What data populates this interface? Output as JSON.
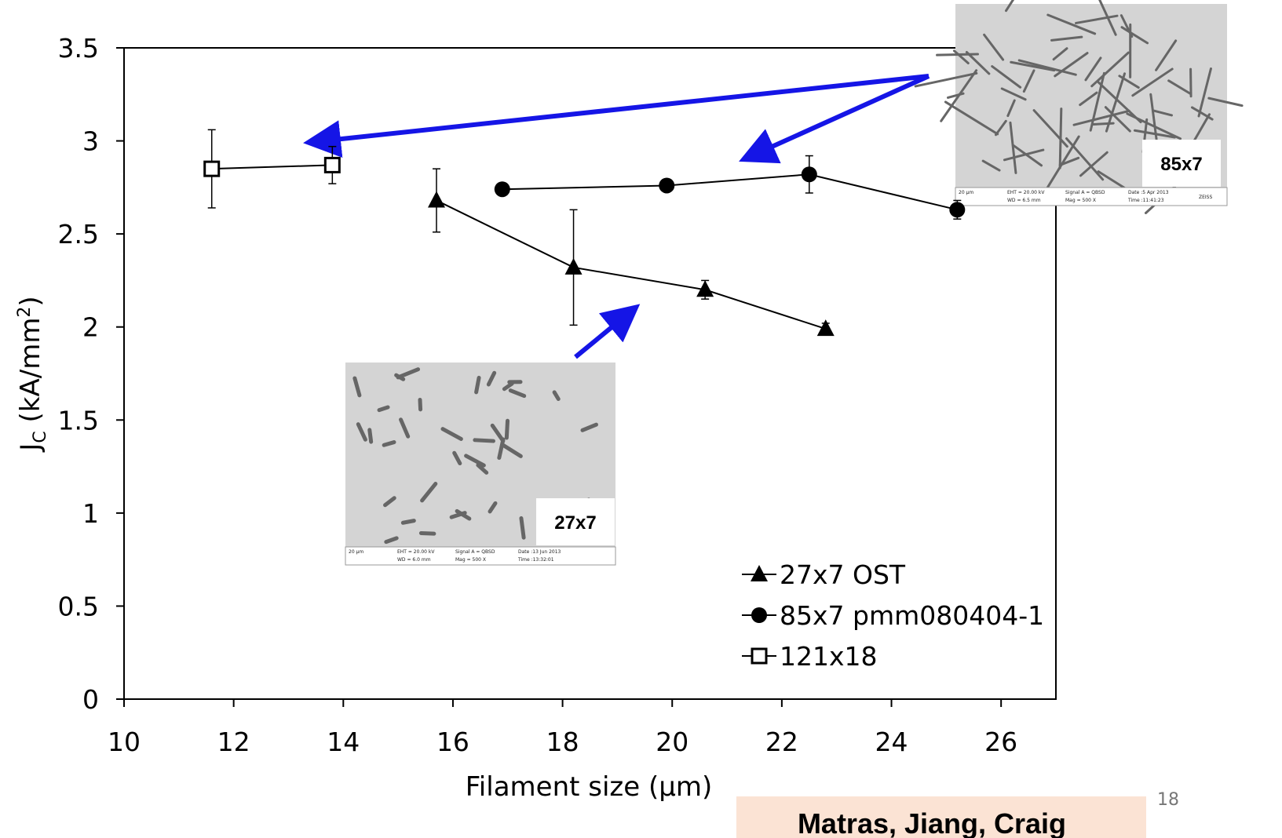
{
  "chart_data": {
    "type": "line",
    "x_label": "Filament size (µm)",
    "y_label": [
      "J",
      "C",
      " (kA/mm",
      "2",
      ")"
    ],
    "xlim": [
      10,
      27
    ],
    "xticks": [
      10,
      12,
      14,
      16,
      18,
      20,
      22,
      24,
      26
    ],
    "ylim": [
      0,
      3.5
    ],
    "yticks": [
      0,
      0.5,
      1,
      1.5,
      2,
      2.5,
      3,
      3.5
    ],
    "legend": "lower right",
    "series": [
      {
        "name": "27x7 OST",
        "marker": "triangle",
        "color": "#000000",
        "x": [
          15.7,
          18.2,
          20.6,
          22.8
        ],
        "values": [
          2.68,
          2.32,
          2.2,
          1.99
        ],
        "errors": [
          0.17,
          0.31,
          0.05,
          0.03
        ]
      },
      {
        "name": "85x7 pmm080404-1",
        "marker": "circle",
        "color": "#000000",
        "x": [
          16.9,
          19.9,
          22.5,
          25.2
        ],
        "values": [
          2.74,
          2.76,
          2.82,
          2.63
        ],
        "errors": [
          0,
          0,
          0.1,
          0.05
        ]
      },
      {
        "name": "121x18",
        "marker": "open-square",
        "color": "#000000",
        "x": [
          11.6,
          13.8
        ],
        "values": [
          2.85,
          2.87
        ],
        "errors": [
          0.21,
          0.1
        ]
      }
    ]
  },
  "insets": [
    {
      "label": "27x7",
      "caption": [
        "20 µm",
        "EHT = 20.00 kV",
        "WD = 6.0 mm",
        "Signal A = QBSD",
        "Mag = 500 X",
        "Date :13 Jun 2013",
        "Time :13:32:01"
      ]
    },
    {
      "label": "85x7",
      "caption": [
        "20 µm",
        "EHT = 20.00 kV",
        "WD = 6.5 mm",
        "Signal A = QBSD",
        "Mag = 500 X",
        "Date :5 Apr 2013",
        "Time :11:41:23",
        "ZEISS"
      ]
    }
  ],
  "footer": {
    "authors": "Matras, Jiang, Craig",
    "page": "18"
  }
}
